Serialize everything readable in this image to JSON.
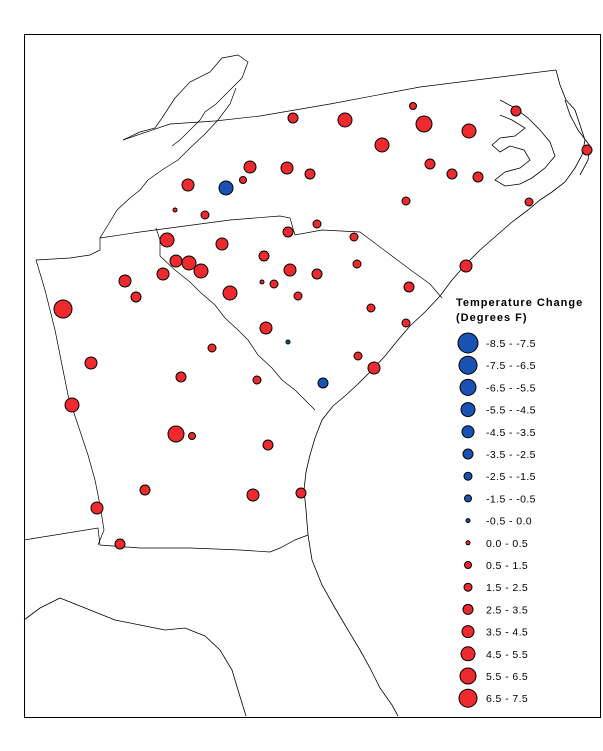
{
  "legend": {
    "title_line1": "Temperature Change",
    "title_line2": "(Degrees F)",
    "items": [
      {
        "label": "-8.5 - -7.5",
        "color": "#1a52b4",
        "r": 10
      },
      {
        "label": "-7.5 - -6.5",
        "color": "#1a52b4",
        "r": 9
      },
      {
        "label": "-6.5 - -5.5",
        "color": "#1a52b4",
        "r": 8
      },
      {
        "label": "-5.5 - -4.5",
        "color": "#1a52b4",
        "r": 7
      },
      {
        "label": "-4.5 - -3.5",
        "color": "#1a52b4",
        "r": 6
      },
      {
        "label": "-3.5 - -2.5",
        "color": "#1a52b4",
        "r": 5
      },
      {
        "label": "-2.5 - -1.5",
        "color": "#1a52b4",
        "r": 4
      },
      {
        "label": "-1.5 - -0.5",
        "color": "#1a52b4",
        "r": 3.5
      },
      {
        "label": "-0.5 - 0.0",
        "color": "#1a52b4",
        "r": 2
      },
      {
        "label": "0.0 - 0.5",
        "color": "#ee2a2e",
        "r": 2
      },
      {
        "label": "0.5 - 1.5",
        "color": "#ee2a2e",
        "r": 3.5
      },
      {
        "label": "1.5 - 2.5",
        "color": "#ee2a2e",
        "r": 4
      },
      {
        "label": "2.5 - 3.5",
        "color": "#ee2a2e",
        "r": 5
      },
      {
        "label": "3.5 - 4.5",
        "color": "#ee2a2e",
        "r": 6
      },
      {
        "label": "4.5 - 5.5",
        "color": "#ee2a2e",
        "r": 7
      },
      {
        "label": "5.5 - 6.5",
        "color": "#ee2a2e",
        "r": 8
      },
      {
        "label": "6.5 - 7.5",
        "color": "#ee2a2e",
        "r": 9
      }
    ]
  },
  "colors": {
    "warming": "#ee2a2e",
    "cooling": "#1a52b4"
  },
  "stations": [
    {
      "lon": 293,
      "lat": 118,
      "class": "6.5 - 7.5"
    }
  ]
}
